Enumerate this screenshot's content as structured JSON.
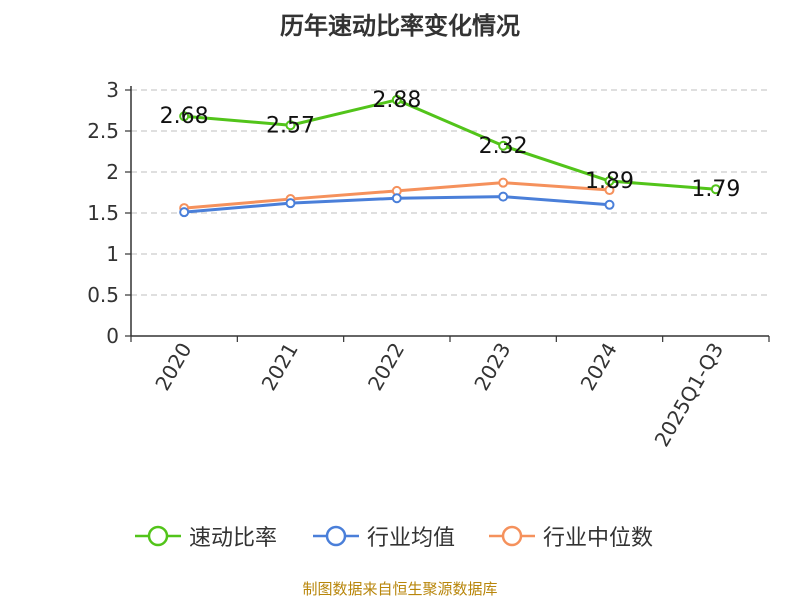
{
  "title": "历年速动比率变化情况",
  "source": "制图数据来自恒生聚源数据库",
  "chart_data": {
    "type": "line",
    "categories": [
      "2020",
      "2021",
      "2022",
      "2023",
      "2024",
      "2025Q1-Q3"
    ],
    "ylim": [
      0,
      3
    ],
    "yticks": [
      "0",
      "0.5",
      "1",
      "1.5",
      "2",
      "2.5",
      "3"
    ],
    "grid": true,
    "legend_position": "bottom",
    "series": [
      {
        "name": "速动比率",
        "color": "#52c41a",
        "values": [
          2.68,
          2.57,
          2.88,
          2.32,
          1.89,
          1.79
        ],
        "labels": [
          "2.68",
          "2.57",
          "2.88",
          "2.32",
          "1.89",
          "1.79"
        ]
      },
      {
        "name": "行业均值",
        "color": "#4a7fd9",
        "values": [
          1.51,
          1.62,
          1.68,
          1.7,
          1.6,
          null
        ]
      },
      {
        "name": "行业中位数",
        "color": "#f5915c",
        "values": [
          1.56,
          1.67,
          1.77,
          1.87,
          1.78,
          null
        ]
      }
    ]
  }
}
